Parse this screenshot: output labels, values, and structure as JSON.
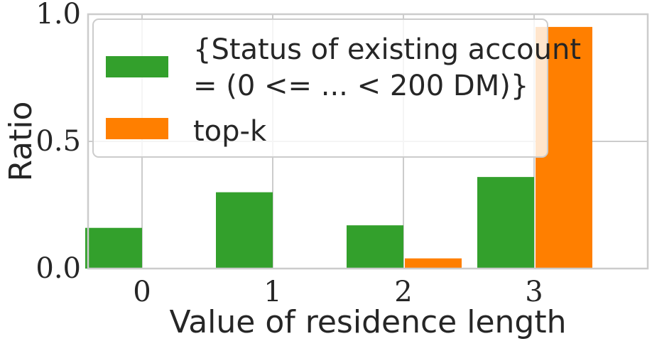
{
  "chart_data": {
    "type": "bar",
    "categories": [
      "0",
      "1",
      "2",
      "3"
    ],
    "series": [
      {
        "name_line1": "{Status of existing account",
        "name_line2": "= (0 <= ... < 200 DM)}",
        "color": "#33a02c",
        "values": [
          0.16,
          0.3,
          0.17,
          0.36
        ]
      },
      {
        "name": "top-k",
        "color": "#ff7f00",
        "values": [
          0.0,
          0.0,
          0.04,
          0.95
        ]
      }
    ],
    "xlabel": "Value of residence length",
    "ylabel": "Ratio",
    "ylim": [
      0,
      1.0
    ],
    "yticks": [
      "0.0",
      "0.5",
      "1.0"
    ],
    "grid": true,
    "legend_position": "top-left"
  }
}
